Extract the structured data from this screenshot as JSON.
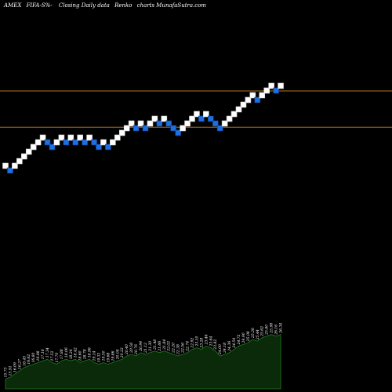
{
  "header": {
    "exchange": "AMEX",
    "symbol": "FIFA-S%-",
    "description": "Closing Daily data",
    "chart_kind": "Renko",
    "tail": "charts MunafaSutra.com"
  },
  "colors": {
    "background": "#000000",
    "up_brick": "#ffffff",
    "down_brick": "#1e6fe0",
    "down_brick_border": "#0a3a8a",
    "reference_line": "#b8741a",
    "volume_fill": "#0a2a0a",
    "volume_line": "#1f7a1f"
  },
  "chart_data": {
    "type": "renko",
    "bricks": [
      {
        "level": 0,
        "dir": "up"
      },
      {
        "level": -1,
        "dir": "down"
      },
      {
        "level": 0,
        "dir": "up"
      },
      {
        "level": 1,
        "dir": "up"
      },
      {
        "level": 2,
        "dir": "up"
      },
      {
        "level": 3,
        "dir": "up"
      },
      {
        "level": 4,
        "dir": "up"
      },
      {
        "level": 5,
        "dir": "up"
      },
      {
        "level": 6,
        "dir": "up"
      },
      {
        "level": 5,
        "dir": "down"
      },
      {
        "level": 4,
        "dir": "down"
      },
      {
        "level": 5,
        "dir": "up"
      },
      {
        "level": 6,
        "dir": "up"
      },
      {
        "level": 5,
        "dir": "down"
      },
      {
        "level": 6,
        "dir": "up"
      },
      {
        "level": 5,
        "dir": "down"
      },
      {
        "level": 6,
        "dir": "up"
      },
      {
        "level": 5,
        "dir": "down"
      },
      {
        "level": 6,
        "dir": "up"
      },
      {
        "level": 5,
        "dir": "down"
      },
      {
        "level": 4,
        "dir": "down"
      },
      {
        "level": 5,
        "dir": "up"
      },
      {
        "level": 4,
        "dir": "down"
      },
      {
        "level": 5,
        "dir": "up"
      },
      {
        "level": 6,
        "dir": "up"
      },
      {
        "level": 7,
        "dir": "up"
      },
      {
        "level": 8,
        "dir": "up"
      },
      {
        "level": 9,
        "dir": "up"
      },
      {
        "level": 8,
        "dir": "down"
      },
      {
        "level": 9,
        "dir": "up"
      },
      {
        "level": 8,
        "dir": "down"
      },
      {
        "level": 9,
        "dir": "up"
      },
      {
        "level": 10,
        "dir": "up"
      },
      {
        "level": 9,
        "dir": "down"
      },
      {
        "level": 10,
        "dir": "up"
      },
      {
        "level": 9,
        "dir": "down"
      },
      {
        "level": 8,
        "dir": "down"
      },
      {
        "level": 7,
        "dir": "down"
      },
      {
        "level": 8,
        "dir": "up"
      },
      {
        "level": 9,
        "dir": "up"
      },
      {
        "level": 10,
        "dir": "up"
      },
      {
        "level": 11,
        "dir": "up"
      },
      {
        "level": 10,
        "dir": "down"
      },
      {
        "level": 11,
        "dir": "up"
      },
      {
        "level": 10,
        "dir": "down"
      },
      {
        "level": 9,
        "dir": "down"
      },
      {
        "level": 8,
        "dir": "down"
      },
      {
        "level": 9,
        "dir": "up"
      },
      {
        "level": 10,
        "dir": "up"
      },
      {
        "level": 11,
        "dir": "up"
      },
      {
        "level": 12,
        "dir": "up"
      },
      {
        "level": 13,
        "dir": "up"
      },
      {
        "level": 14,
        "dir": "up"
      },
      {
        "level": 15,
        "dir": "up"
      },
      {
        "level": 14,
        "dir": "down"
      },
      {
        "level": 15,
        "dir": "up"
      },
      {
        "level": 16,
        "dir": "up"
      },
      {
        "level": 17,
        "dir": "up"
      },
      {
        "level": 16,
        "dir": "down"
      },
      {
        "level": 17,
        "dir": "up"
      }
    ],
    "reference_levels": [
      16,
      8.3
    ],
    "volume": {
      "values": [
        6,
        7,
        9,
        11,
        13,
        14,
        15,
        16,
        17,
        18,
        16,
        15,
        17,
        18,
        17,
        18,
        16,
        17,
        18,
        16,
        15,
        16,
        15,
        16,
        17,
        18,
        20,
        21,
        20,
        22,
        21,
        22,
        23,
        22,
        23,
        22,
        21,
        20,
        21,
        22,
        24,
        25,
        24,
        26,
        25,
        23,
        20,
        21,
        22,
        24,
        26,
        27,
        28,
        30,
        29,
        31,
        32,
        33,
        32,
        33
      ],
      "labels": [
        "15.73",
        "15.91",
        "16.09",
        "16.27",
        "16.45",
        "16.62",
        "16.80",
        "16.98",
        "17.16",
        "17.34",
        "17.52",
        "17.70",
        "17.88",
        "18.06",
        "18.24",
        "18.42",
        "18.60",
        "18.78",
        "18.96",
        "19.14",
        "19.32",
        "19.50",
        "19.68",
        "19.86",
        "20.04",
        "20.22",
        "20.40",
        "20.58",
        "20.76",
        "20.94",
        "21.12",
        "21.30",
        "21.48",
        "21.66",
        "21.84",
        "22.02",
        "22.20",
        "22.38",
        "22.56",
        "22.74",
        "22.92",
        "23.10",
        "23.28",
        "23.46",
        "23.64",
        "23.82",
        "24.00",
        "24.18",
        "24.36",
        "24.54",
        "24.72",
        "24.90",
        "25.08",
        "25.26",
        "25.44",
        "25.62",
        "25.80",
        "25.98",
        "26.16",
        "26.34"
      ]
    }
  }
}
